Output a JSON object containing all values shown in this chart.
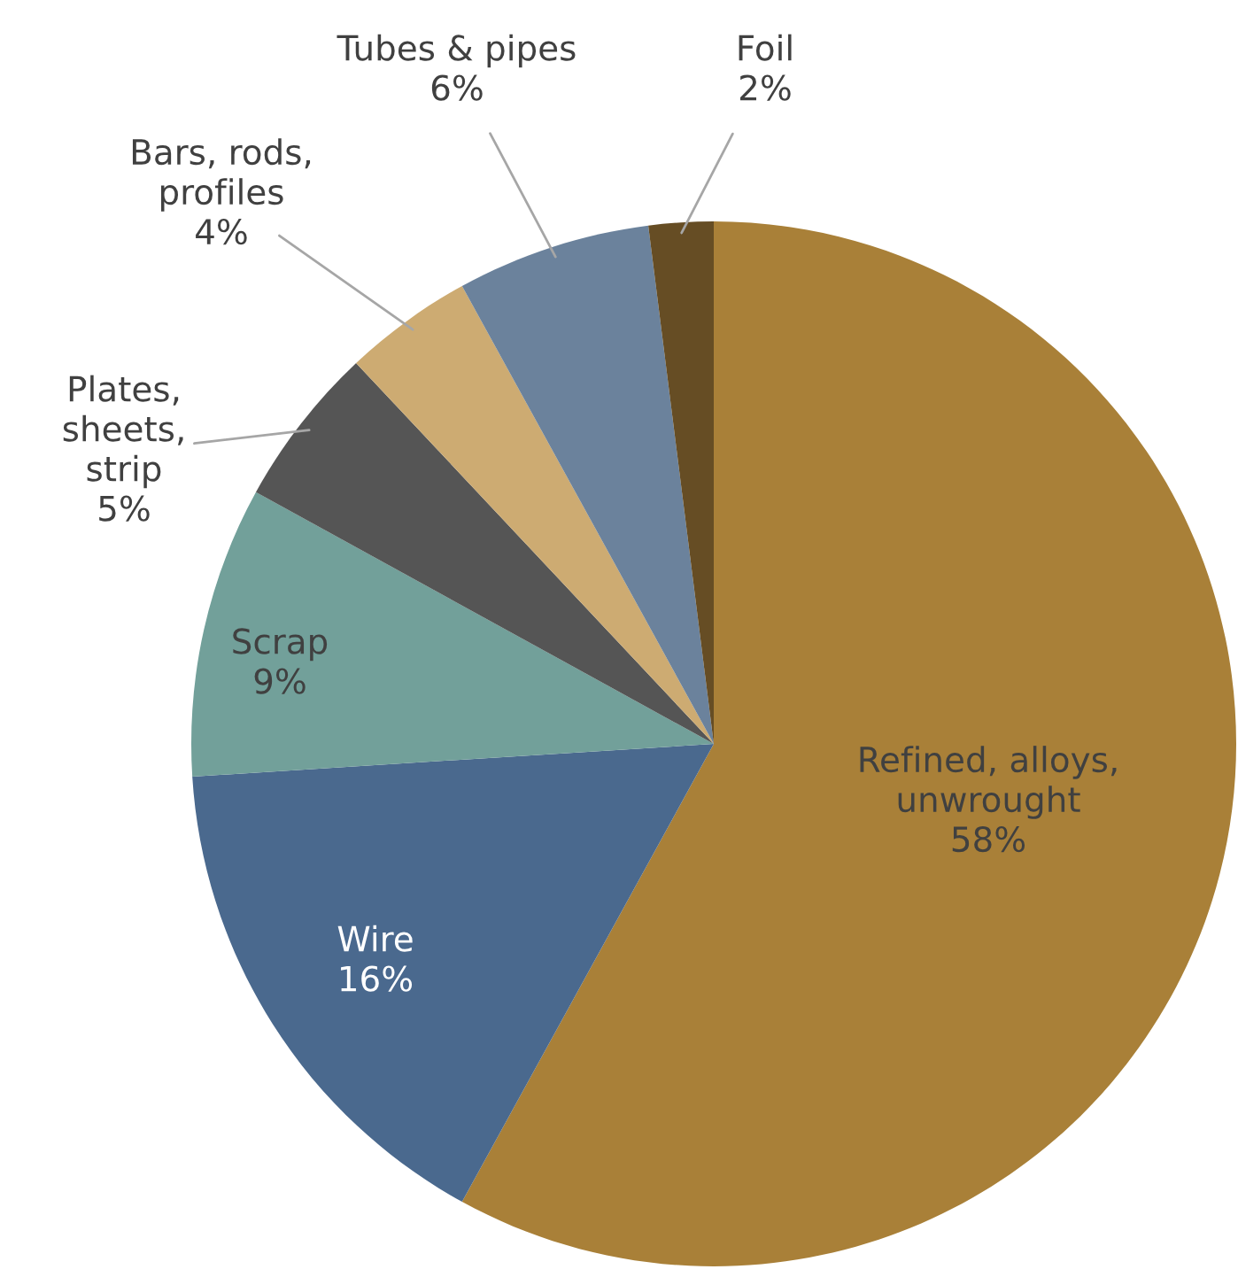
{
  "chart_data": {
    "type": "pie",
    "categories": [
      "Refined, alloys,\nunwrought",
      "Wire",
      "Scrap",
      "Plates,\nsheets,\nstrip",
      "Bars, rods,\nprofiles",
      "Tubes & pipes",
      "Foil"
    ],
    "values": [
      58,
      16,
      9,
      5,
      4,
      6,
      2
    ],
    "value_labels": [
      "58%",
      "16%",
      "9%",
      "5%",
      "4%",
      "6%",
      "2%"
    ],
    "colors": [
      "#a98038",
      "#4a698e",
      "#72a09a",
      "#555555",
      "#cdab72",
      "#6b829c",
      "#664d24"
    ]
  }
}
